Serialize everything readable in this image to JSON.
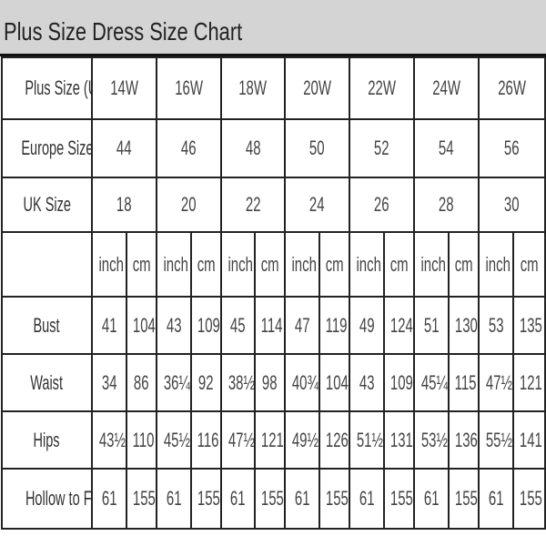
{
  "title": "Plus Size Dress Size Chart",
  "sizes": {
    "label_us": "Plus Size (US)",
    "us": [
      "14W",
      "16W",
      "18W",
      "20W",
      "22W",
      "24W",
      "26W"
    ],
    "label_eu": "Europe Size",
    "eu": [
      "44",
      "46",
      "48",
      "50",
      "52",
      "54",
      "56"
    ],
    "label_uk": "UK Size",
    "uk": [
      "18",
      "20",
      "22",
      "24",
      "26",
      "28",
      "30"
    ]
  },
  "units": {
    "label": "",
    "inch": "inch",
    "cm": "cm"
  },
  "measurements": [
    {
      "label": "Bust",
      "values": [
        "41",
        "104",
        "43",
        "109",
        "45",
        "114",
        "47",
        "119",
        "49",
        "124",
        "51",
        "130",
        "53",
        "135"
      ]
    },
    {
      "label": "Waist",
      "values": [
        "34",
        "86",
        "36¼",
        "92",
        "38½",
        "98",
        "40¾",
        "104",
        "43",
        "109",
        "45¼",
        "115",
        "47½",
        "121"
      ]
    },
    {
      "label": "Hips",
      "values": [
        "43½",
        "110",
        "45½",
        "116",
        "47½",
        "121",
        "49½",
        "126",
        "51½",
        "131",
        "53½",
        "136",
        "55½",
        "141"
      ]
    },
    {
      "label": "Hollow to Floor",
      "values": [
        "61",
        "155",
        "61",
        "155",
        "61",
        "155",
        "61",
        "155",
        "61",
        "155",
        "61",
        "155",
        "61",
        "155"
      ]
    }
  ]
}
